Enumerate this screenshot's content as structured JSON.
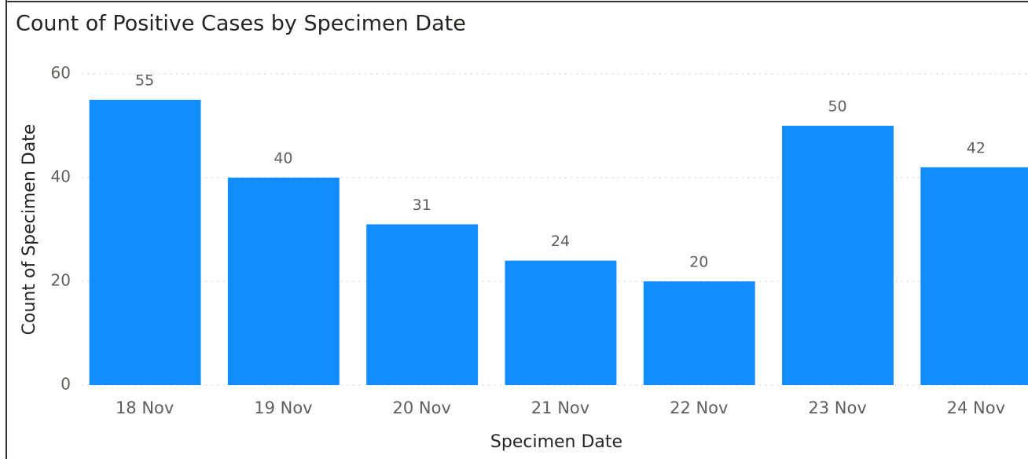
{
  "chart_data": {
    "type": "bar",
    "title": "Count of Positive Cases by Specimen Date",
    "x_label": "Specimen Date",
    "y_label": "Count of Specimen Date",
    "categories": [
      "18 Nov",
      "19 Nov",
      "20 Nov",
      "21 Nov",
      "22 Nov",
      "23 Nov",
      "24 Nov"
    ],
    "values": [
      55,
      40,
      31,
      24,
      20,
      50,
      42
    ],
    "color": "#118DFF",
    "ylim": [
      0,
      60
    ],
    "yticks": [
      0,
      20,
      40,
      60
    ],
    "grid": true
  }
}
